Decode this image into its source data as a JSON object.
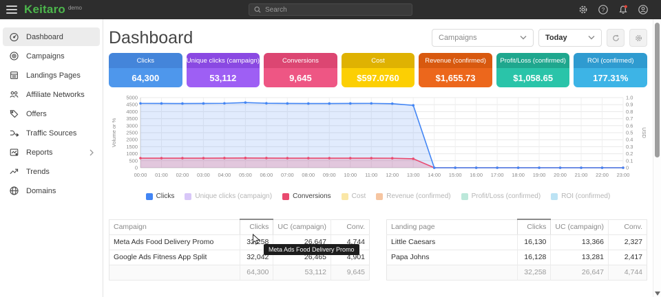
{
  "topbar": {
    "logo": "Keitaro",
    "logo_suffix": "demo",
    "search_placeholder": "Search"
  },
  "sidebar": {
    "items": [
      {
        "label": "Dashboard",
        "icon": "gauge-icon",
        "active": true,
        "chevron": false
      },
      {
        "label": "Campaigns",
        "icon": "target-icon",
        "active": false,
        "chevron": false
      },
      {
        "label": "Landings Pages",
        "icon": "pages-icon",
        "active": false,
        "chevron": false
      },
      {
        "label": "Affiliate Networks",
        "icon": "people-icon",
        "active": false,
        "chevron": false
      },
      {
        "label": "Offers",
        "icon": "tag-icon",
        "active": false,
        "chevron": false
      },
      {
        "label": "Traffic Sources",
        "icon": "split-icon",
        "active": false,
        "chevron": false
      },
      {
        "label": "Reports",
        "icon": "report-icon",
        "active": false,
        "chevron": true
      },
      {
        "label": "Trends",
        "icon": "trend-icon",
        "active": false,
        "chevron": false
      },
      {
        "label": "Domains",
        "icon": "globe-icon",
        "active": false,
        "chevron": false
      }
    ]
  },
  "header": {
    "title": "Dashboard",
    "campaigns_filter": "Campaigns",
    "period": "Today"
  },
  "cards": [
    {
      "label": "Clicks",
      "value": "64,300",
      "header_color": "#4485da",
      "body_color": "#4e97ec"
    },
    {
      "label": "Unique clicks (campaign)",
      "value": "53,112",
      "header_color": "#8a49e2",
      "body_color": "#9e5ff4"
    },
    {
      "label": "Conversions",
      "value": "9,645",
      "header_color": "#dc4672",
      "body_color": "#ee5684"
    },
    {
      "label": "Cost",
      "value": "$597.0760",
      "header_color": "#dfb202",
      "body_color": "#fccf03"
    },
    {
      "label": "Revenue (confirmed)",
      "value": "$1,655.73",
      "header_color": "#d8590f",
      "body_color": "#ec671c"
    },
    {
      "label": "Profit/Loss (confirmed)",
      "value": "$1,058.65",
      "header_color": "#1fa78e",
      "body_color": "#2ac4a9"
    },
    {
      "label": "ROI (confirmed)",
      "value": "177.31%",
      "header_color": "#2f9bd0",
      "body_color": "#3db4e6"
    }
  ],
  "chart_data": {
    "type": "area",
    "x_labels": [
      "00:00",
      "01:00",
      "02:00",
      "03:00",
      "04:00",
      "05:00",
      "06:00",
      "07:00",
      "08:00",
      "09:00",
      "10:00",
      "11:00",
      "12:00",
      "13:00",
      "14:00",
      "15:00",
      "16:00",
      "17:00",
      "18:00",
      "19:00",
      "20:00",
      "21:00",
      "22:00",
      "23:00"
    ],
    "left_axis": {
      "label": "Volume or %",
      "min": 0,
      "max": 5000,
      "step": 500
    },
    "right_axis": {
      "label": "USD",
      "min": 0,
      "max": 1.0,
      "step": 0.1
    },
    "grid": true,
    "legend_position": "bottom",
    "series": [
      {
        "name": "Clicks",
        "color": "#4285f4",
        "fill": "rgba(66,133,244,0.16)",
        "values": [
          4590,
          4585,
          4580,
          4585,
          4595,
          4650,
          4600,
          4585,
          4580,
          4580,
          4585,
          4590,
          4570,
          4450,
          0,
          0,
          0,
          0,
          0,
          0,
          0,
          0,
          0,
          0
        ]
      },
      {
        "name": "Conversions",
        "color": "#e94a6f",
        "fill": "rgba(233,74,111,0.22)",
        "values": [
          685,
          685,
          685,
          685,
          690,
          695,
          690,
          685,
          685,
          685,
          685,
          685,
          680,
          640,
          0,
          0,
          0,
          0,
          0,
          0,
          0,
          0,
          0,
          0
        ]
      }
    ],
    "legend": [
      {
        "label": "Clicks",
        "color": "#4285f4",
        "active": true
      },
      {
        "label": "Unique clicks (campaign)",
        "color": "#d8c7f8",
        "active": false
      },
      {
        "label": "Conversions",
        "color": "#e94a6f",
        "active": true
      },
      {
        "label": "Cost",
        "color": "#fae7a6",
        "active": false
      },
      {
        "label": "Revenue (confirmed)",
        "color": "#f6c5a1",
        "active": false
      },
      {
        "label": "Profit/Loss (confirmed)",
        "color": "#bce8da",
        "active": false
      },
      {
        "label": "ROI (confirmed)",
        "color": "#bce3f4",
        "active": false
      }
    ]
  },
  "tables": [
    {
      "name_header": "Campaign",
      "columns": [
        "Clicks",
        "UC (campaign)",
        "Conv."
      ],
      "sorted_column": "Clicks",
      "rows": [
        [
          "Meta Ads Food Delivery Promo",
          "32,258",
          "26,647",
          "4,744"
        ],
        [
          "Google Ads Fitness App Split",
          "32,042",
          "26,465",
          "4,901"
        ]
      ],
      "footer": [
        "",
        "64,300",
        "53,112",
        "9,645"
      ]
    },
    {
      "name_header": "Landing page",
      "columns": [
        "Clicks",
        "UC (campaign)",
        "Conv."
      ],
      "sorted_column": "Clicks",
      "rows": [
        [
          "Little Caesars",
          "16,130",
          "13,366",
          "2,327"
        ],
        [
          "Papa Johns",
          "16,128",
          "13,281",
          "2,417"
        ]
      ],
      "footer": [
        "",
        "32,258",
        "26,647",
        "4,744"
      ]
    }
  ],
  "tooltip": {
    "text": "Meta Ads Food Delivery Promo"
  }
}
